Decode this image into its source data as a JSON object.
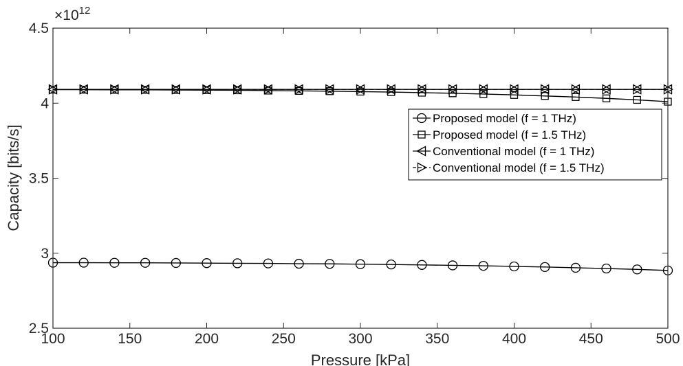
{
  "chart_data": {
    "type": "line",
    "xlabel": "Pressure [kPa]",
    "ylabel": "Capacity [bits/s]",
    "exponent_label": "×10",
    "exponent_power": "12",
    "xlim": [
      100,
      500
    ],
    "ylim": [
      2.5,
      4.5
    ],
    "x_ticks": [
      "100",
      "150",
      "200",
      "250",
      "300",
      "350",
      "400",
      "450",
      "500"
    ],
    "y_ticks": [
      "2.5",
      "3",
      "3.5",
      "4",
      "4.5"
    ],
    "y_tick_values": [
      2.5,
      3,
      3.5,
      4,
      4.5
    ],
    "x_tick_values": [
      100,
      150,
      200,
      250,
      300,
      350,
      400,
      450,
      500
    ],
    "grid": false,
    "legend_position": "right",
    "x": [
      100,
      120,
      140,
      160,
      180,
      200,
      220,
      240,
      260,
      280,
      300,
      320,
      340,
      360,
      380,
      400,
      420,
      440,
      460,
      480,
      500
    ],
    "series": [
      {
        "name": "Proposed model (f = 1 THz)",
        "marker": "circle",
        "line_style": "solid",
        "color": "#000000",
        "values": [
          2.937,
          2.937,
          2.936,
          2.936,
          2.935,
          2.934,
          2.933,
          2.932,
          2.93,
          2.929,
          2.927,
          2.925,
          2.922,
          2.919,
          2.916,
          2.912,
          2.908,
          2.903,
          2.898,
          2.892,
          2.885
        ]
      },
      {
        "name": "Proposed model (f = 1.5 THz)",
        "marker": "square",
        "line_style": "solid",
        "color": "#000000",
        "values": [
          4.09,
          4.09,
          4.089,
          4.089,
          4.088,
          4.087,
          4.086,
          4.084,
          4.082,
          4.08,
          4.077,
          4.074,
          4.07,
          4.066,
          4.061,
          4.055,
          4.048,
          4.041,
          4.032,
          4.022,
          4.01
        ]
      },
      {
        "name": "Conventional model (f = 1 THz)",
        "marker": "triangle-left",
        "line_style": "solid",
        "color": "#000000",
        "values": [
          4.092,
          4.092,
          4.092,
          4.092,
          4.092,
          4.092,
          4.092,
          4.092,
          4.092,
          4.092,
          4.092,
          4.092,
          4.092,
          4.092,
          4.092,
          4.092,
          4.092,
          4.092,
          4.092,
          4.092,
          4.092
        ]
      },
      {
        "name": "Conventional model (f = 1.5 THz)",
        "marker": "triangle-right",
        "line_style": "dashed",
        "color": "#000000",
        "values": [
          4.092,
          4.092,
          4.092,
          4.092,
          4.092,
          4.092,
          4.092,
          4.092,
          4.092,
          4.092,
          4.092,
          4.092,
          4.092,
          4.092,
          4.092,
          4.092,
          4.092,
          4.092,
          4.092,
          4.092,
          4.092
        ]
      }
    ]
  }
}
